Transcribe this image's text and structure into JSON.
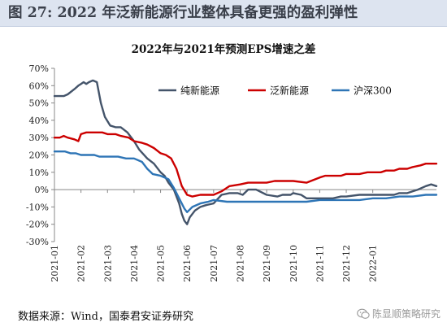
{
  "figure_title": "图 27: 2022 年泛新能源行业整体具备更强的盈利弹性",
  "source_text": "数据来源：Wind，国泰君安证券研究",
  "watermark": "陈显顺策略研究",
  "chart_data": {
    "type": "line",
    "title": "2022年与2021年预测EPS增速之差",
    "ylim": [
      -30,
      70
    ],
    "yticks": [
      "70%",
      "60%",
      "50%",
      "40%",
      "30%",
      "20%",
      "10%",
      "0%",
      "-10%",
      "-20%",
      "-30%"
    ],
    "ytick_values": [
      70,
      60,
      50,
      40,
      30,
      20,
      10,
      0,
      -10,
      -20,
      -30
    ],
    "xtick_labels": [
      "2021-01",
      "2021-02",
      "2021-03",
      "2021-04",
      "2021-05",
      "2021-06",
      "2021-07",
      "2021-08",
      "2021-09",
      "2021-10",
      "2021-11",
      "2021-12",
      "2022-01"
    ],
    "x_range": [
      0,
      14.4
    ],
    "legend_position": "top-center",
    "series": [
      {
        "name": "纯新能源",
        "color": "#44546a",
        "x": [
          0,
          0.2,
          0.35,
          0.5,
          0.75,
          0.9,
          1.0,
          1.1,
          1.2,
          1.3,
          1.45,
          1.6,
          1.75,
          1.9,
          2.1,
          2.3,
          2.5,
          2.75,
          3.0,
          3.2,
          3.5,
          3.75,
          4.0,
          4.15,
          4.3,
          4.5,
          4.7,
          4.8,
          4.9,
          5.0,
          5.1,
          5.3,
          5.5,
          5.7,
          6.0,
          6.3,
          6.6,
          6.9,
          7.1,
          7.3,
          7.6,
          8.0,
          8.4,
          8.6,
          8.9,
          9.0,
          9.3,
          9.5,
          10.0,
          10.5,
          10.8,
          11.0,
          11.5,
          12.0,
          12.5,
          12.8,
          13.0,
          13.3,
          13.5,
          13.7,
          14.0,
          14.2,
          14.4
        ],
        "y": [
          54,
          54,
          54,
          55,
          58,
          60,
          61,
          62,
          61,
          62,
          63,
          62,
          50,
          42,
          37,
          36,
          36,
          33,
          28,
          23,
          18,
          15,
          10,
          8,
          4,
          0,
          -8,
          -14,
          -18,
          -20,
          -16,
          -12,
          -10,
          -9,
          -8,
          -3,
          -2,
          -2,
          -3,
          0,
          0,
          -3,
          -4,
          -3,
          -3,
          -2,
          -3,
          -5,
          -5,
          -5,
          -4,
          -4,
          -3,
          -3,
          -3,
          -3,
          -2,
          -2,
          -1,
          0,
          2,
          3,
          2
        ]
      },
      {
        "name": "泛新能源",
        "color": "#cc0000",
        "x": [
          0,
          0.2,
          0.35,
          0.5,
          0.75,
          0.9,
          1.0,
          1.2,
          1.3,
          1.45,
          1.6,
          1.8,
          2.0,
          2.3,
          2.5,
          2.8,
          3.0,
          3.3,
          3.5,
          3.75,
          4.0,
          4.2,
          4.4,
          4.6,
          4.8,
          5.0,
          5.2,
          5.5,
          6.0,
          6.3,
          6.6,
          7.0,
          7.3,
          7.6,
          8.0,
          8.3,
          8.6,
          9.0,
          9.5,
          10.0,
          10.2,
          10.5,
          10.8,
          11.0,
          11.3,
          11.5,
          11.8,
          12.0,
          12.3,
          12.5,
          12.8,
          13.0,
          13.3,
          13.5,
          13.8,
          14.0,
          14.2,
          14.4
        ],
        "y": [
          30,
          30,
          31,
          30,
          29,
          28,
          32,
          33,
          33,
          33,
          33,
          33,
          32,
          32,
          31,
          30,
          28,
          27,
          26,
          24,
          21,
          20,
          18,
          12,
          2,
          -3,
          -4,
          -3,
          -3,
          -1,
          2,
          3,
          4,
          4,
          4,
          5,
          5,
          5,
          4,
          7,
          8,
          8,
          8,
          9,
          9,
          9,
          10,
          10,
          10,
          11,
          11,
          12,
          12,
          13,
          14,
          15,
          15,
          15
        ]
      },
      {
        "name": "沪深300",
        "color": "#2e75b6",
        "x": [
          0,
          0.2,
          0.4,
          0.6,
          0.8,
          1.0,
          1.2,
          1.5,
          1.7,
          1.9,
          2.1,
          2.4,
          2.7,
          3.0,
          3.3,
          3.5,
          3.7,
          4.0,
          4.3,
          4.5,
          4.7,
          4.9,
          5.0,
          5.2,
          5.5,
          5.8,
          6.0,
          6.5,
          7.0,
          7.5,
          8.0,
          8.5,
          9.0,
          9.5,
          10.0,
          10.5,
          11.0,
          11.5,
          12.0,
          12.5,
          13.0,
          13.5,
          14.0,
          14.4
        ],
        "y": [
          22,
          22,
          22,
          21,
          21,
          20,
          20,
          20,
          19,
          19,
          19,
          19,
          18,
          18,
          16,
          12,
          9,
          8,
          6,
          1,
          -5,
          -11,
          -13,
          -10,
          -8,
          -7,
          -6,
          -7,
          -7,
          -7,
          -7,
          -7,
          -7,
          -7,
          -6,
          -6,
          -6,
          -6,
          -5,
          -5,
          -4,
          -4,
          -3,
          -3
        ]
      }
    ]
  }
}
